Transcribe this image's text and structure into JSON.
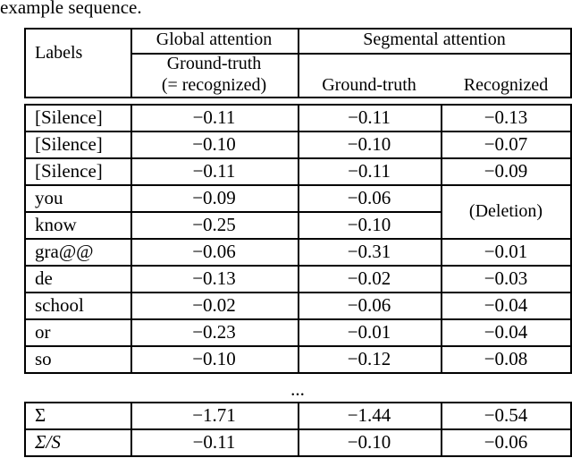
{
  "caption": "example sequence.",
  "header": {
    "labels": "Labels",
    "global_attention": "Global attention",
    "segmental_attention": "Segmental attention",
    "global_sub_line1": "Ground-truth",
    "global_sub_line2": "(= recognized)",
    "seg_ground_truth": "Ground-truth",
    "seg_recognized": "Recognized"
  },
  "rows": [
    {
      "label": "[Silence]",
      "global": "−0.11",
      "seg_gt": "−0.11",
      "seg_rec": "−0.13"
    },
    {
      "label": "[Silence]",
      "global": "−0.10",
      "seg_gt": "−0.10",
      "seg_rec": "−0.07"
    },
    {
      "label": "[Silence]",
      "global": "−0.11",
      "seg_gt": "−0.11",
      "seg_rec": "−0.09"
    },
    {
      "label": "you",
      "global": "−0.09",
      "seg_gt": "−0.06",
      "seg_rec": ""
    },
    {
      "label": "know",
      "global": "−0.25",
      "seg_gt": "−0.10",
      "seg_rec": ""
    },
    {
      "label": "gra@@",
      "global": "−0.06",
      "seg_gt": "−0.31",
      "seg_rec": "−0.01"
    },
    {
      "label": "de",
      "global": "−0.13",
      "seg_gt": "−0.02",
      "seg_rec": "−0.03"
    },
    {
      "label": "school",
      "global": "−0.02",
      "seg_gt": "−0.06",
      "seg_rec": "−0.04"
    },
    {
      "label": "or",
      "global": "−0.23",
      "seg_gt": "−0.01",
      "seg_rec": "−0.04"
    },
    {
      "label": "so",
      "global": "−0.10",
      "seg_gt": "−0.12",
      "seg_rec": "−0.08"
    }
  ],
  "deletion_label": "(Deletion)",
  "ellipsis": "...",
  "summary": [
    {
      "label": "Σ",
      "global": "−1.71",
      "seg_gt": "−1.44",
      "seg_rec": "−0.54"
    },
    {
      "label": "Σ/S",
      "global": "−0.11",
      "seg_gt": "−0.10",
      "seg_rec": "−0.06"
    }
  ]
}
